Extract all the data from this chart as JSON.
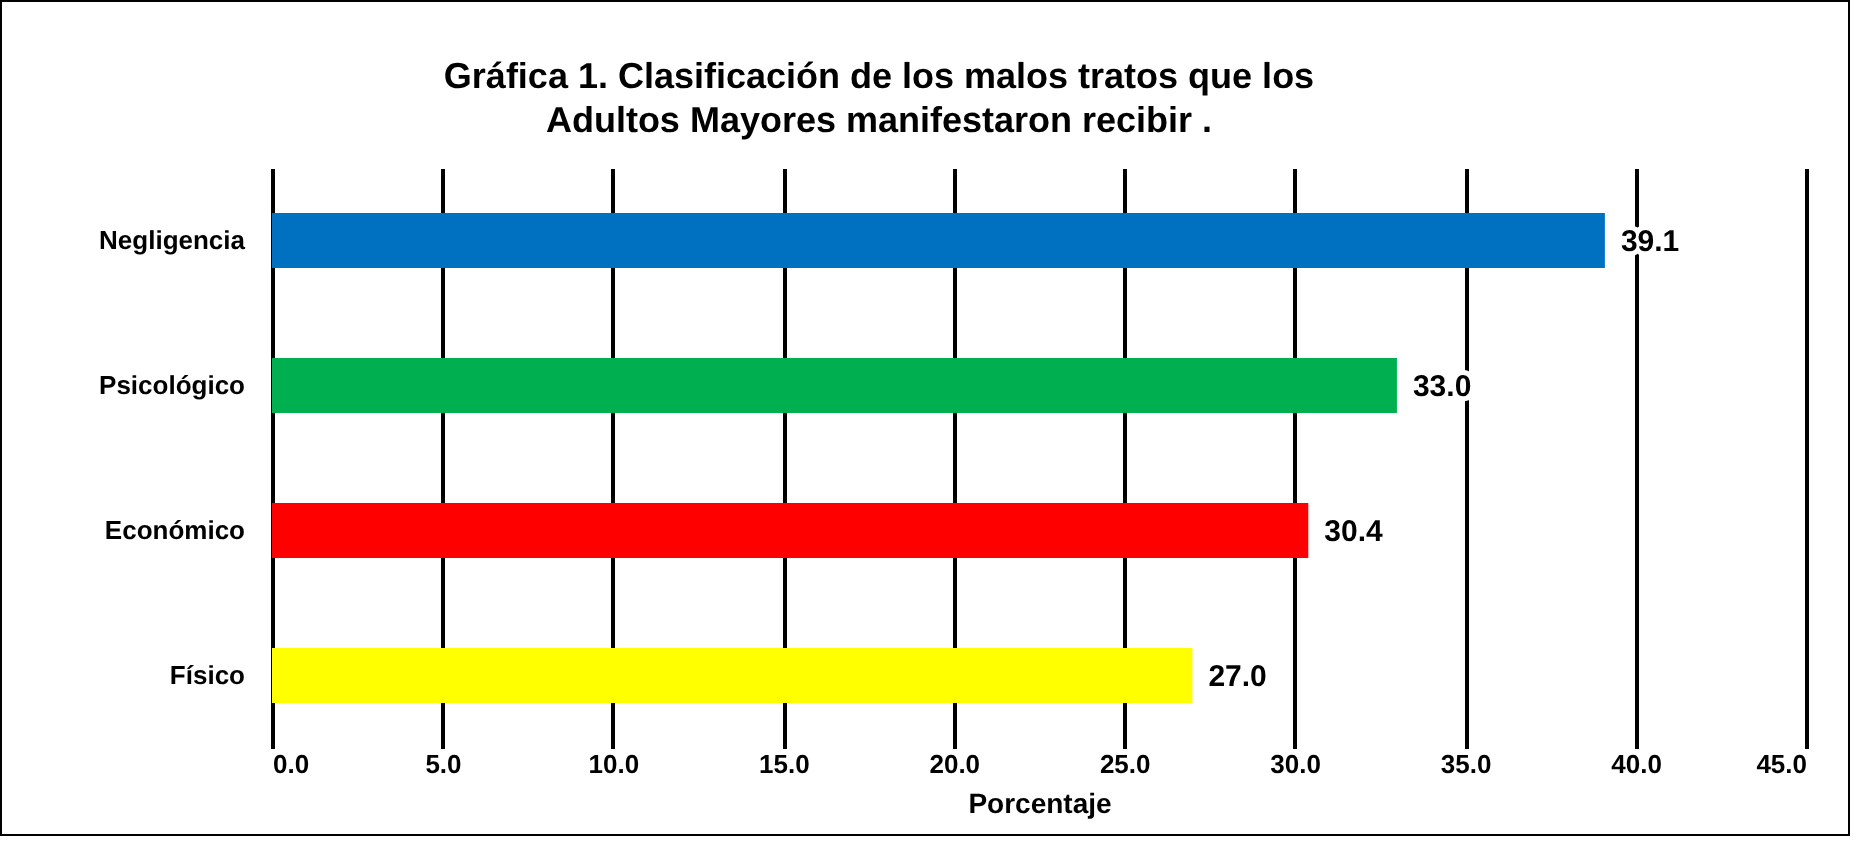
{
  "chart_data": {
    "type": "bar",
    "orientation": "horizontal",
    "title": "Gráfica 1.  Clasificación  de los malos tratos  que los\nAdultos Mayores  manifestaron  recibir .",
    "xlabel": "Porcentaje",
    "categories": [
      "Negligencia",
      "Psicológico",
      "Económico",
      "Físico"
    ],
    "values": [
      39.1,
      33.0,
      30.4,
      27.0
    ],
    "colors": [
      "#0070c0",
      "#00b050",
      "#ff0000",
      "#ffff00"
    ],
    "value_labels": [
      "39.1",
      "33.0",
      "30.4",
      "27.0"
    ],
    "xlim": [
      0,
      45
    ],
    "xticks": [
      {
        "value": 0,
        "label": "0.0"
      },
      {
        "value": 5,
        "label": "5.0"
      },
      {
        "value": 10,
        "label": "10.0"
      },
      {
        "value": 15,
        "label": "15.0"
      },
      {
        "value": 20,
        "label": "20.0"
      },
      {
        "value": 25,
        "label": "25.0"
      },
      {
        "value": 30,
        "label": "30.0"
      },
      {
        "value": 35,
        "label": "35.0"
      },
      {
        "value": 40,
        "label": "40.0"
      },
      {
        "value": 45,
        "label": "45.0"
      }
    ],
    "grid": "x"
  }
}
